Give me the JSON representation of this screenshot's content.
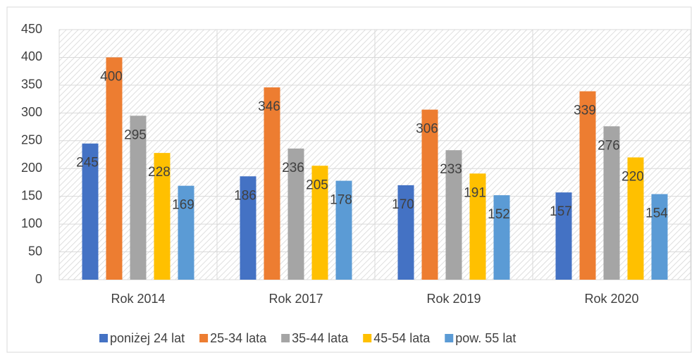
{
  "chart_data": {
    "type": "bar",
    "categories": [
      "Rok 2014",
      "Rok 2017",
      "Rok 2019",
      "Rok 2020"
    ],
    "series": [
      {
        "name": "poniżej 24 lat",
        "color": "#4472c4",
        "values": [
          245,
          186,
          170,
          157
        ]
      },
      {
        "name": "25-34 lata",
        "color": "#ed7d31",
        "values": [
          400,
          346,
          306,
          339
        ]
      },
      {
        "name": "35-44 lata",
        "color": "#a5a5a5",
        "values": [
          295,
          236,
          233,
          276
        ]
      },
      {
        "name": "45-54 lata",
        "color": "#ffc000",
        "values": [
          228,
          205,
          191,
          220
        ]
      },
      {
        "name": "pow. 55 lat",
        "color": "#5b9bd5",
        "values": [
          169,
          178,
          152,
          154
        ]
      }
    ],
    "ylim": [
      0,
      450
    ],
    "yticks": [
      0,
      50,
      100,
      150,
      200,
      250,
      300,
      350,
      400,
      450
    ],
    "grid": true,
    "legend": "bottom"
  }
}
